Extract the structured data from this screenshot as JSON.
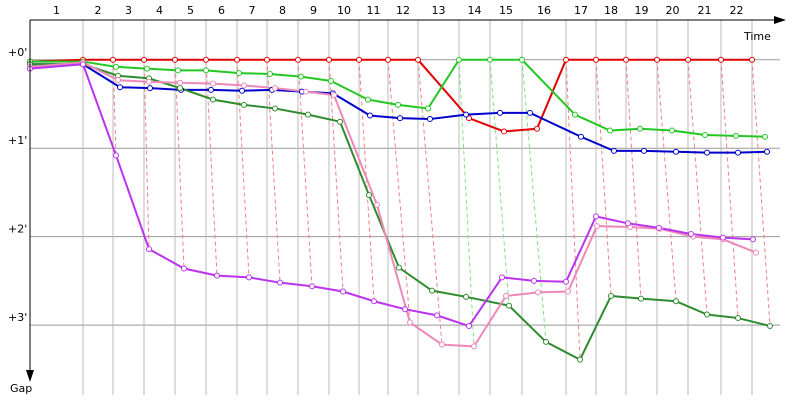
{
  "chart_data": {
    "type": "line",
    "x_label": "Time",
    "y_label": "Gap",
    "laps": [
      "1",
      "2",
      "3",
      "4",
      "5",
      "6",
      "7",
      "8",
      "9",
      "10",
      "11",
      "12",
      "13",
      "14",
      "15",
      "16",
      "17",
      "18",
      "19",
      "20",
      "21",
      "22"
    ],
    "xlim": [
      0,
      750
    ],
    "ylim": [
      -0.45,
      3.79
    ],
    "yticks": [
      {
        "value": 0,
        "label": "+0'"
      },
      {
        "value": 1,
        "label": "+1'"
      },
      {
        "value": 2,
        "label": "+2'"
      },
      {
        "value": 3,
        "label": "+3'"
      }
    ],
    "grid": true,
    "series": [
      {
        "color": "#e00000",
        "x": [
          0,
          53,
          83,
          114,
          145,
          176,
          207,
          237,
          268,
          299,
          329,
          358,
          388,
          439,
          474,
          507,
          536,
          566,
          596,
          627,
          658,
          691,
          722
        ],
        "values": [
          0.02,
          0,
          0,
          0,
          0,
          0,
          0,
          0,
          0,
          0,
          0,
          0,
          0,
          0.66,
          0.81,
          0.78,
          0,
          0,
          0,
          0,
          0,
          0,
          0
        ]
      },
      {
        "color": "#22c822",
        "x": [
          0,
          53,
          86,
          117,
          148,
          176,
          209,
          240,
          271,
          301,
          338,
          368,
          398,
          429,
          460,
          492,
          545,
          580,
          610,
          642,
          675,
          706,
          735
        ],
        "values": [
          0.02,
          0.02,
          0.08,
          0.1,
          0.12,
          0.12,
          0.15,
          0.16,
          0.19,
          0.24,
          0.45,
          0.51,
          0.55,
          0,
          0,
          0,
          0.62,
          0.8,
          0.78,
          0.8,
          0.85,
          0.86,
          0.87
        ]
      },
      {
        "color": "#0000cc",
        "x": [
          0,
          53,
          90,
          120,
          151,
          181,
          212,
          242,
          272,
          303,
          340,
          370,
          400,
          436,
          470,
          500,
          551,
          584,
          614,
          646,
          677,
          708,
          737
        ],
        "values": [
          0.05,
          0.05,
          0.31,
          0.32,
          0.34,
          0.34,
          0.35,
          0.34,
          0.36,
          0.38,
          0.63,
          0.66,
          0.67,
          0.62,
          0.6,
          0.6,
          0.87,
          1.03,
          1.03,
          1.04,
          1.05,
          1.05,
          1.04
        ]
      },
      {
        "color": "#2e8b2e",
        "x": [
          0,
          53,
          88,
          119,
          150,
          183,
          214,
          245,
          278,
          310,
          339,
          369,
          402,
          436,
          479,
          516,
          550,
          581,
          611,
          646,
          677,
          708,
          740
        ],
        "values": [
          0.05,
          0.05,
          0.18,
          0.21,
          0.32,
          0.45,
          0.51,
          0.55,
          0.62,
          0.7,
          1.53,
          2.35,
          2.61,
          2.68,
          2.78,
          3.19,
          3.39,
          2.67,
          2.7,
          2.73,
          2.88,
          2.92,
          3.01
        ]
      },
      {
        "color": "#ee88b8",
        "x": [
          0,
          53,
          88,
          119,
          150,
          183,
          214,
          245,
          276,
          304,
          347,
          380,
          412,
          444,
          476,
          508,
          538,
          567,
          600,
          630,
          663,
          693,
          726
        ],
        "values": [
          0.08,
          0.03,
          0.23,
          0.25,
          0.26,
          0.27,
          0.29,
          0.32,
          0.36,
          0.4,
          1.64,
          2.97,
          3.22,
          3.24,
          2.67,
          2.63,
          2.62,
          1.88,
          1.89,
          1.91,
          2.0,
          2.03,
          2.18
        ]
      },
      {
        "color": "#bb33ee",
        "x": [
          0,
          53,
          86,
          119,
          154,
          187,
          219,
          250,
          282,
          313,
          344,
          375,
          407,
          439,
          472,
          504,
          536,
          566,
          598,
          629,
          661,
          693,
          723
        ],
        "values": [
          0.1,
          0.05,
          1.08,
          2.14,
          2.36,
          2.44,
          2.46,
          2.52,
          2.56,
          2.62,
          2.73,
          2.82,
          2.89,
          3.01,
          2.46,
          2.5,
          2.51,
          1.77,
          1.85,
          1.9,
          1.97,
          2.01,
          2.03
        ]
      }
    ]
  }
}
